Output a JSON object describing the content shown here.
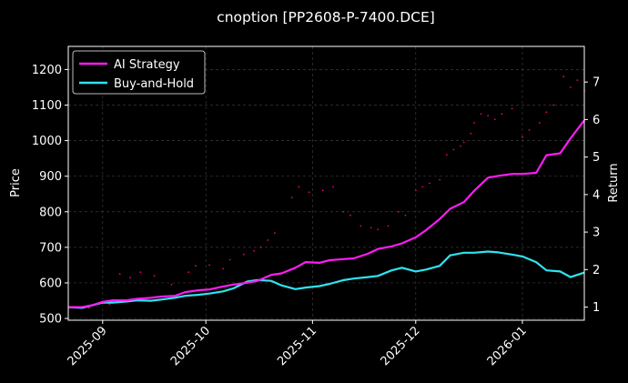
{
  "chart_data": {
    "type": "line",
    "title": "cnoption [PP2608-P-7400.DCE]",
    "ylabel_left": "Price",
    "ylabel_right": "Return",
    "ylim_left": [
      495,
      1265
    ],
    "ylim_right": [
      0.65,
      7.95
    ],
    "yticks_left": [
      "500",
      "600",
      "700",
      "800",
      "900",
      "1000",
      "1100",
      "1200"
    ],
    "yticks_right": [
      "1",
      "2",
      "3",
      "4",
      "5",
      "6",
      "7"
    ],
    "xticks": [
      "2025-09",
      "2025-10",
      "2025-11",
      "2025-12",
      "2026-01"
    ],
    "grid": true,
    "legend_position": "top-left",
    "colors": {
      "background": "#000000",
      "text": "#ffffff",
      "grid": "#3a3a3a",
      "ai_strategy": "#ff1cf4",
      "buy_and_hold": "#2ee4f0",
      "price_points": "#e6007e"
    },
    "series": [
      {
        "name": "AI Strategy",
        "axis": "right",
        "points": [
          [
            "2025-08-22",
            1.0
          ],
          [
            "2025-08-26",
            1.0
          ],
          [
            "2025-08-29",
            1.05
          ],
          [
            "2025-09-01",
            1.14
          ],
          [
            "2025-09-04",
            1.18
          ],
          [
            "2025-09-08",
            1.18
          ],
          [
            "2025-09-11",
            1.22
          ],
          [
            "2025-09-15",
            1.25
          ],
          [
            "2025-09-18",
            1.28
          ],
          [
            "2025-09-22",
            1.3
          ],
          [
            "2025-09-25",
            1.4
          ],
          [
            "2025-09-29",
            1.45
          ],
          [
            "2025-10-02",
            1.47
          ],
          [
            "2025-10-06",
            1.55
          ],
          [
            "2025-10-09",
            1.6
          ],
          [
            "2025-10-13",
            1.65
          ],
          [
            "2025-10-16",
            1.7
          ],
          [
            "2025-10-20",
            1.86
          ],
          [
            "2025-10-23",
            1.9
          ],
          [
            "2025-10-27",
            2.05
          ],
          [
            "2025-10-30",
            2.2
          ],
          [
            "2025-11-03",
            2.18
          ],
          [
            "2025-11-06",
            2.25
          ],
          [
            "2025-11-10",
            2.28
          ],
          [
            "2025-11-13",
            2.3
          ],
          [
            "2025-11-17",
            2.42
          ],
          [
            "2025-11-20",
            2.55
          ],
          [
            "2025-11-24",
            2.62
          ],
          [
            "2025-11-27",
            2.7
          ],
          [
            "2025-12-01",
            2.86
          ],
          [
            "2025-12-04",
            3.05
          ],
          [
            "2025-12-08",
            3.35
          ],
          [
            "2025-12-11",
            3.62
          ],
          [
            "2025-12-15",
            3.8
          ],
          [
            "2025-12-18",
            4.1
          ],
          [
            "2025-12-22",
            4.45
          ],
          [
            "2025-12-25",
            4.5
          ],
          [
            "2025-12-29",
            4.55
          ],
          [
            "2026-01-01",
            4.55
          ],
          [
            "2026-01-05",
            4.58
          ],
          [
            "2026-01-08",
            5.05
          ],
          [
            "2026-01-12",
            5.1
          ],
          [
            "2026-01-15",
            5.5
          ],
          [
            "2026-01-19",
            5.98
          ]
        ]
      },
      {
        "name": "Buy-and-Hold",
        "axis": "right",
        "points": [
          [
            "2025-08-22",
            1.0
          ],
          [
            "2025-08-26",
            0.98
          ],
          [
            "2025-08-29",
            1.05
          ],
          [
            "2025-09-01",
            1.12
          ],
          [
            "2025-09-04",
            1.12
          ],
          [
            "2025-09-08",
            1.15
          ],
          [
            "2025-09-11",
            1.18
          ],
          [
            "2025-09-15",
            1.17
          ],
          [
            "2025-09-18",
            1.2
          ],
          [
            "2025-09-22",
            1.25
          ],
          [
            "2025-09-25",
            1.3
          ],
          [
            "2025-09-29",
            1.33
          ],
          [
            "2025-10-02",
            1.36
          ],
          [
            "2025-10-06",
            1.42
          ],
          [
            "2025-10-09",
            1.5
          ],
          [
            "2025-10-13",
            1.68
          ],
          [
            "2025-10-16",
            1.72
          ],
          [
            "2025-10-20",
            1.7
          ],
          [
            "2025-10-23",
            1.58
          ],
          [
            "2025-10-27",
            1.48
          ],
          [
            "2025-10-30",
            1.52
          ],
          [
            "2025-11-03",
            1.56
          ],
          [
            "2025-11-06",
            1.62
          ],
          [
            "2025-11-10",
            1.72
          ],
          [
            "2025-11-13",
            1.76
          ],
          [
            "2025-11-17",
            1.8
          ],
          [
            "2025-11-20",
            1.83
          ],
          [
            "2025-11-24",
            1.98
          ],
          [
            "2025-11-27",
            2.05
          ],
          [
            "2025-12-01",
            1.95
          ],
          [
            "2025-12-04",
            2.0
          ],
          [
            "2025-12-08",
            2.1
          ],
          [
            "2025-12-11",
            2.38
          ],
          [
            "2025-12-15",
            2.45
          ],
          [
            "2025-12-18",
            2.45
          ],
          [
            "2025-12-22",
            2.48
          ],
          [
            "2025-12-25",
            2.46
          ],
          [
            "2025-12-29",
            2.4
          ],
          [
            "2026-01-01",
            2.35
          ],
          [
            "2026-01-05",
            2.2
          ],
          [
            "2026-01-08",
            1.98
          ],
          [
            "2026-01-12",
            1.95
          ],
          [
            "2026-01-15",
            1.8
          ],
          [
            "2026-01-19",
            1.92
          ]
        ]
      },
      {
        "name": "Price",
        "axis": "left",
        "style": "points",
        "points": [
          [
            "2025-08-28",
            530
          ],
          [
            "2025-09-03",
            540
          ],
          [
            "2025-09-06",
            625
          ],
          [
            "2025-09-09",
            615
          ],
          [
            "2025-09-12",
            630
          ],
          [
            "2025-09-16",
            620
          ],
          [
            "2025-09-21",
            595
          ],
          [
            "2025-09-26",
            630
          ],
          [
            "2025-09-28",
            648
          ],
          [
            "2025-10-02",
            650
          ],
          [
            "2025-10-06",
            640
          ],
          [
            "2025-10-08",
            665
          ],
          [
            "2025-10-12",
            680
          ],
          [
            "2025-10-15",
            690
          ],
          [
            "2025-10-17",
            700
          ],
          [
            "2025-10-19",
            720
          ],
          [
            "2025-10-21",
            740
          ],
          [
            "2025-10-26",
            840
          ],
          [
            "2025-10-28",
            870
          ],
          [
            "2025-10-31",
            855
          ],
          [
            "2025-11-04",
            860
          ],
          [
            "2025-11-07",
            870
          ],
          [
            "2025-11-10",
            800
          ],
          [
            "2025-11-12",
            790
          ],
          [
            "2025-11-15",
            760
          ],
          [
            "2025-11-18",
            755
          ],
          [
            "2025-11-20",
            750
          ],
          [
            "2025-11-23",
            760
          ],
          [
            "2025-11-26",
            800
          ],
          [
            "2025-11-28",
            790
          ],
          [
            "2025-12-01",
            860
          ],
          [
            "2025-12-03",
            870
          ],
          [
            "2025-12-05",
            880
          ],
          [
            "2025-12-08",
            890
          ],
          [
            "2025-12-10",
            960
          ],
          [
            "2025-12-12",
            975
          ],
          [
            "2025-12-14",
            985
          ],
          [
            "2025-12-15",
            995
          ],
          [
            "2025-12-17",
            1020
          ],
          [
            "2025-12-18",
            1050
          ],
          [
            "2025-12-20",
            1075
          ],
          [
            "2025-12-22",
            1070
          ],
          [
            "2025-12-24",
            1060
          ],
          [
            "2025-12-26",
            1075
          ],
          [
            "2025-12-29",
            1090
          ],
          [
            "2026-01-01",
            1010
          ],
          [
            "2026-01-03",
            1030
          ],
          [
            "2026-01-06",
            1050
          ],
          [
            "2026-01-08",
            1080
          ],
          [
            "2026-01-10",
            1100
          ],
          [
            "2026-01-13",
            1180
          ],
          [
            "2026-01-15",
            1150
          ],
          [
            "2026-01-17",
            1170
          ],
          [
            "2026-01-19",
            1140
          ]
        ]
      }
    ]
  }
}
